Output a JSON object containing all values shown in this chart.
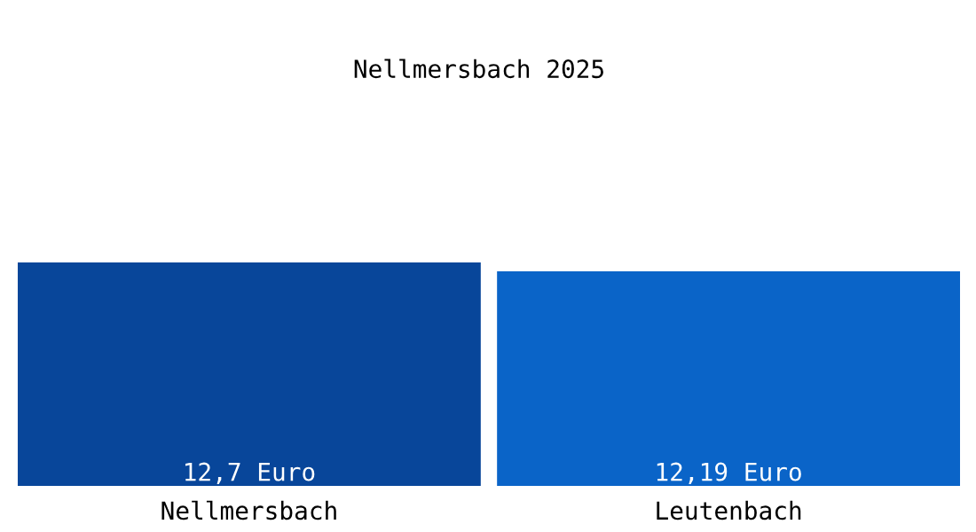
{
  "chart_data": {
    "type": "bar",
    "title": "Nellmersbach 2025",
    "categories": [
      "Nellmersbach",
      "Leutenbach"
    ],
    "values": [
      12.7,
      12.19
    ],
    "colors": [
      "#08469a",
      "#0a64c8"
    ],
    "value_labels": [
      "12,7 Euro",
      "12,19 Euro"
    ],
    "grid": false
  }
}
